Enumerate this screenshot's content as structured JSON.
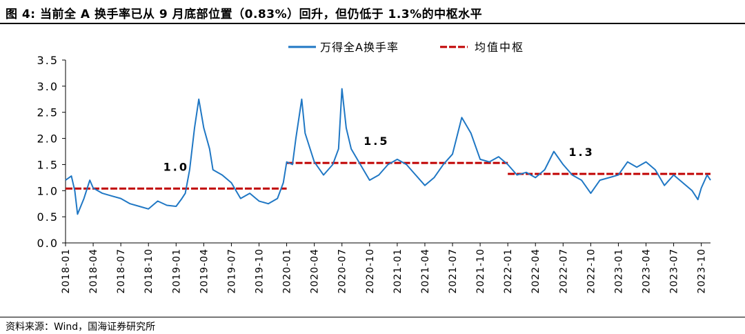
{
  "title": "图 4:  当前全 A 换手率已从 9 月底部位置（0.83%）回升，但仍低于 1.3%的中枢水平",
  "source": "资料来源：Wind，国海证券研究所",
  "chart_data": {
    "type": "line",
    "ylim": [
      0,
      3.5
    ],
    "yticks": [
      "0.0",
      "0.5",
      "1.0",
      "1.5",
      "2.0",
      "2.5",
      "3.0",
      "3.5"
    ],
    "xlim": [
      "2018-01",
      "2023-11"
    ],
    "xticks": [
      "2018-01",
      "2018-04",
      "2018-07",
      "2018-10",
      "2019-01",
      "2019-04",
      "2019-07",
      "2019-10",
      "2020-01",
      "2020-04",
      "2020-07",
      "2020-10",
      "2021-01",
      "2021-04",
      "2021-07",
      "2021-10",
      "2022-01",
      "2022-04",
      "2022-07",
      "2022-10",
      "2023-01",
      "2023-04",
      "2023-07",
      "2023-10"
    ],
    "legend_position": "top-center",
    "series": [
      {
        "name": "万得全A换手率",
        "color": "#1f77c4",
        "x": [
          "2018-01",
          "2018-01-20",
          "2018-02",
          "2018-02-10",
          "2018-03",
          "2018-03-20",
          "2018-04",
          "2018-05",
          "2018-06",
          "2018-07",
          "2018-08",
          "2018-09",
          "2018-10",
          "2018-11",
          "2018-12",
          "2019-01",
          "2019-01-20",
          "2019-02",
          "2019-02-15",
          "2019-03",
          "2019-03-15",
          "2019-04",
          "2019-04-20",
          "2019-05",
          "2019-06",
          "2019-07",
          "2019-08",
          "2019-09",
          "2019-10",
          "2019-11",
          "2019-12",
          "2019-12-20",
          "2020-01",
          "2020-01-20",
          "2020-02",
          "2020-02-20",
          "2020-03",
          "2020-04",
          "2020-05",
          "2020-06",
          "2020-06-20",
          "2020-07",
          "2020-07-15",
          "2020-08",
          "2020-09",
          "2020-10",
          "2020-11",
          "2020-12",
          "2021-01",
          "2021-02",
          "2021-03",
          "2021-04",
          "2021-05",
          "2021-06",
          "2021-07",
          "2021-08",
          "2021-09",
          "2021-10",
          "2021-11",
          "2021-12",
          "2022-01",
          "2022-02",
          "2022-03",
          "2022-04",
          "2022-05",
          "2022-06",
          "2022-07",
          "2022-08",
          "2022-09",
          "2022-10",
          "2022-11",
          "2022-12",
          "2023-01",
          "2023-02",
          "2023-03",
          "2023-04",
          "2023-05",
          "2023-06",
          "2023-07",
          "2023-08",
          "2023-09",
          "2023-09-20",
          "2023-10",
          "2023-10-20",
          "2023-11"
        ],
        "values": [
          1.2,
          1.28,
          1.0,
          0.55,
          0.85,
          1.2,
          1.05,
          0.95,
          0.9,
          0.85,
          0.75,
          0.7,
          0.65,
          0.8,
          0.72,
          0.7,
          0.85,
          0.95,
          1.4,
          2.2,
          2.75,
          2.2,
          1.8,
          1.4,
          1.3,
          1.15,
          0.85,
          0.95,
          0.8,
          0.75,
          0.85,
          1.15,
          1.55,
          1.5,
          2.0,
          2.75,
          2.1,
          1.55,
          1.3,
          1.5,
          1.8,
          2.95,
          2.2,
          1.8,
          1.5,
          1.2,
          1.3,
          1.5,
          1.6,
          1.5,
          1.3,
          1.1,
          1.25,
          1.5,
          1.7,
          2.4,
          2.1,
          1.6,
          1.55,
          1.65,
          1.5,
          1.3,
          1.35,
          1.25,
          1.4,
          1.75,
          1.5,
          1.3,
          1.2,
          0.95,
          1.2,
          1.25,
          1.3,
          1.55,
          1.45,
          1.55,
          1.4,
          1.1,
          1.3,
          1.15,
          1.0,
          0.83,
          1.05,
          1.3,
          1.2
        ]
      },
      {
        "name": "均值中枢",
        "color": "#c00000",
        "dashed": true,
        "segments": [
          {
            "x": [
              "2018-01",
              "2020-01"
            ],
            "value": 1.04,
            "label": "1.0"
          },
          {
            "x": [
              "2020-01",
              "2022-01"
            ],
            "value": 1.53,
            "label": "1.5"
          },
          {
            "x": [
              "2022-01",
              "2023-11"
            ],
            "value": 1.32,
            "label": "1.3"
          }
        ]
      }
    ]
  }
}
